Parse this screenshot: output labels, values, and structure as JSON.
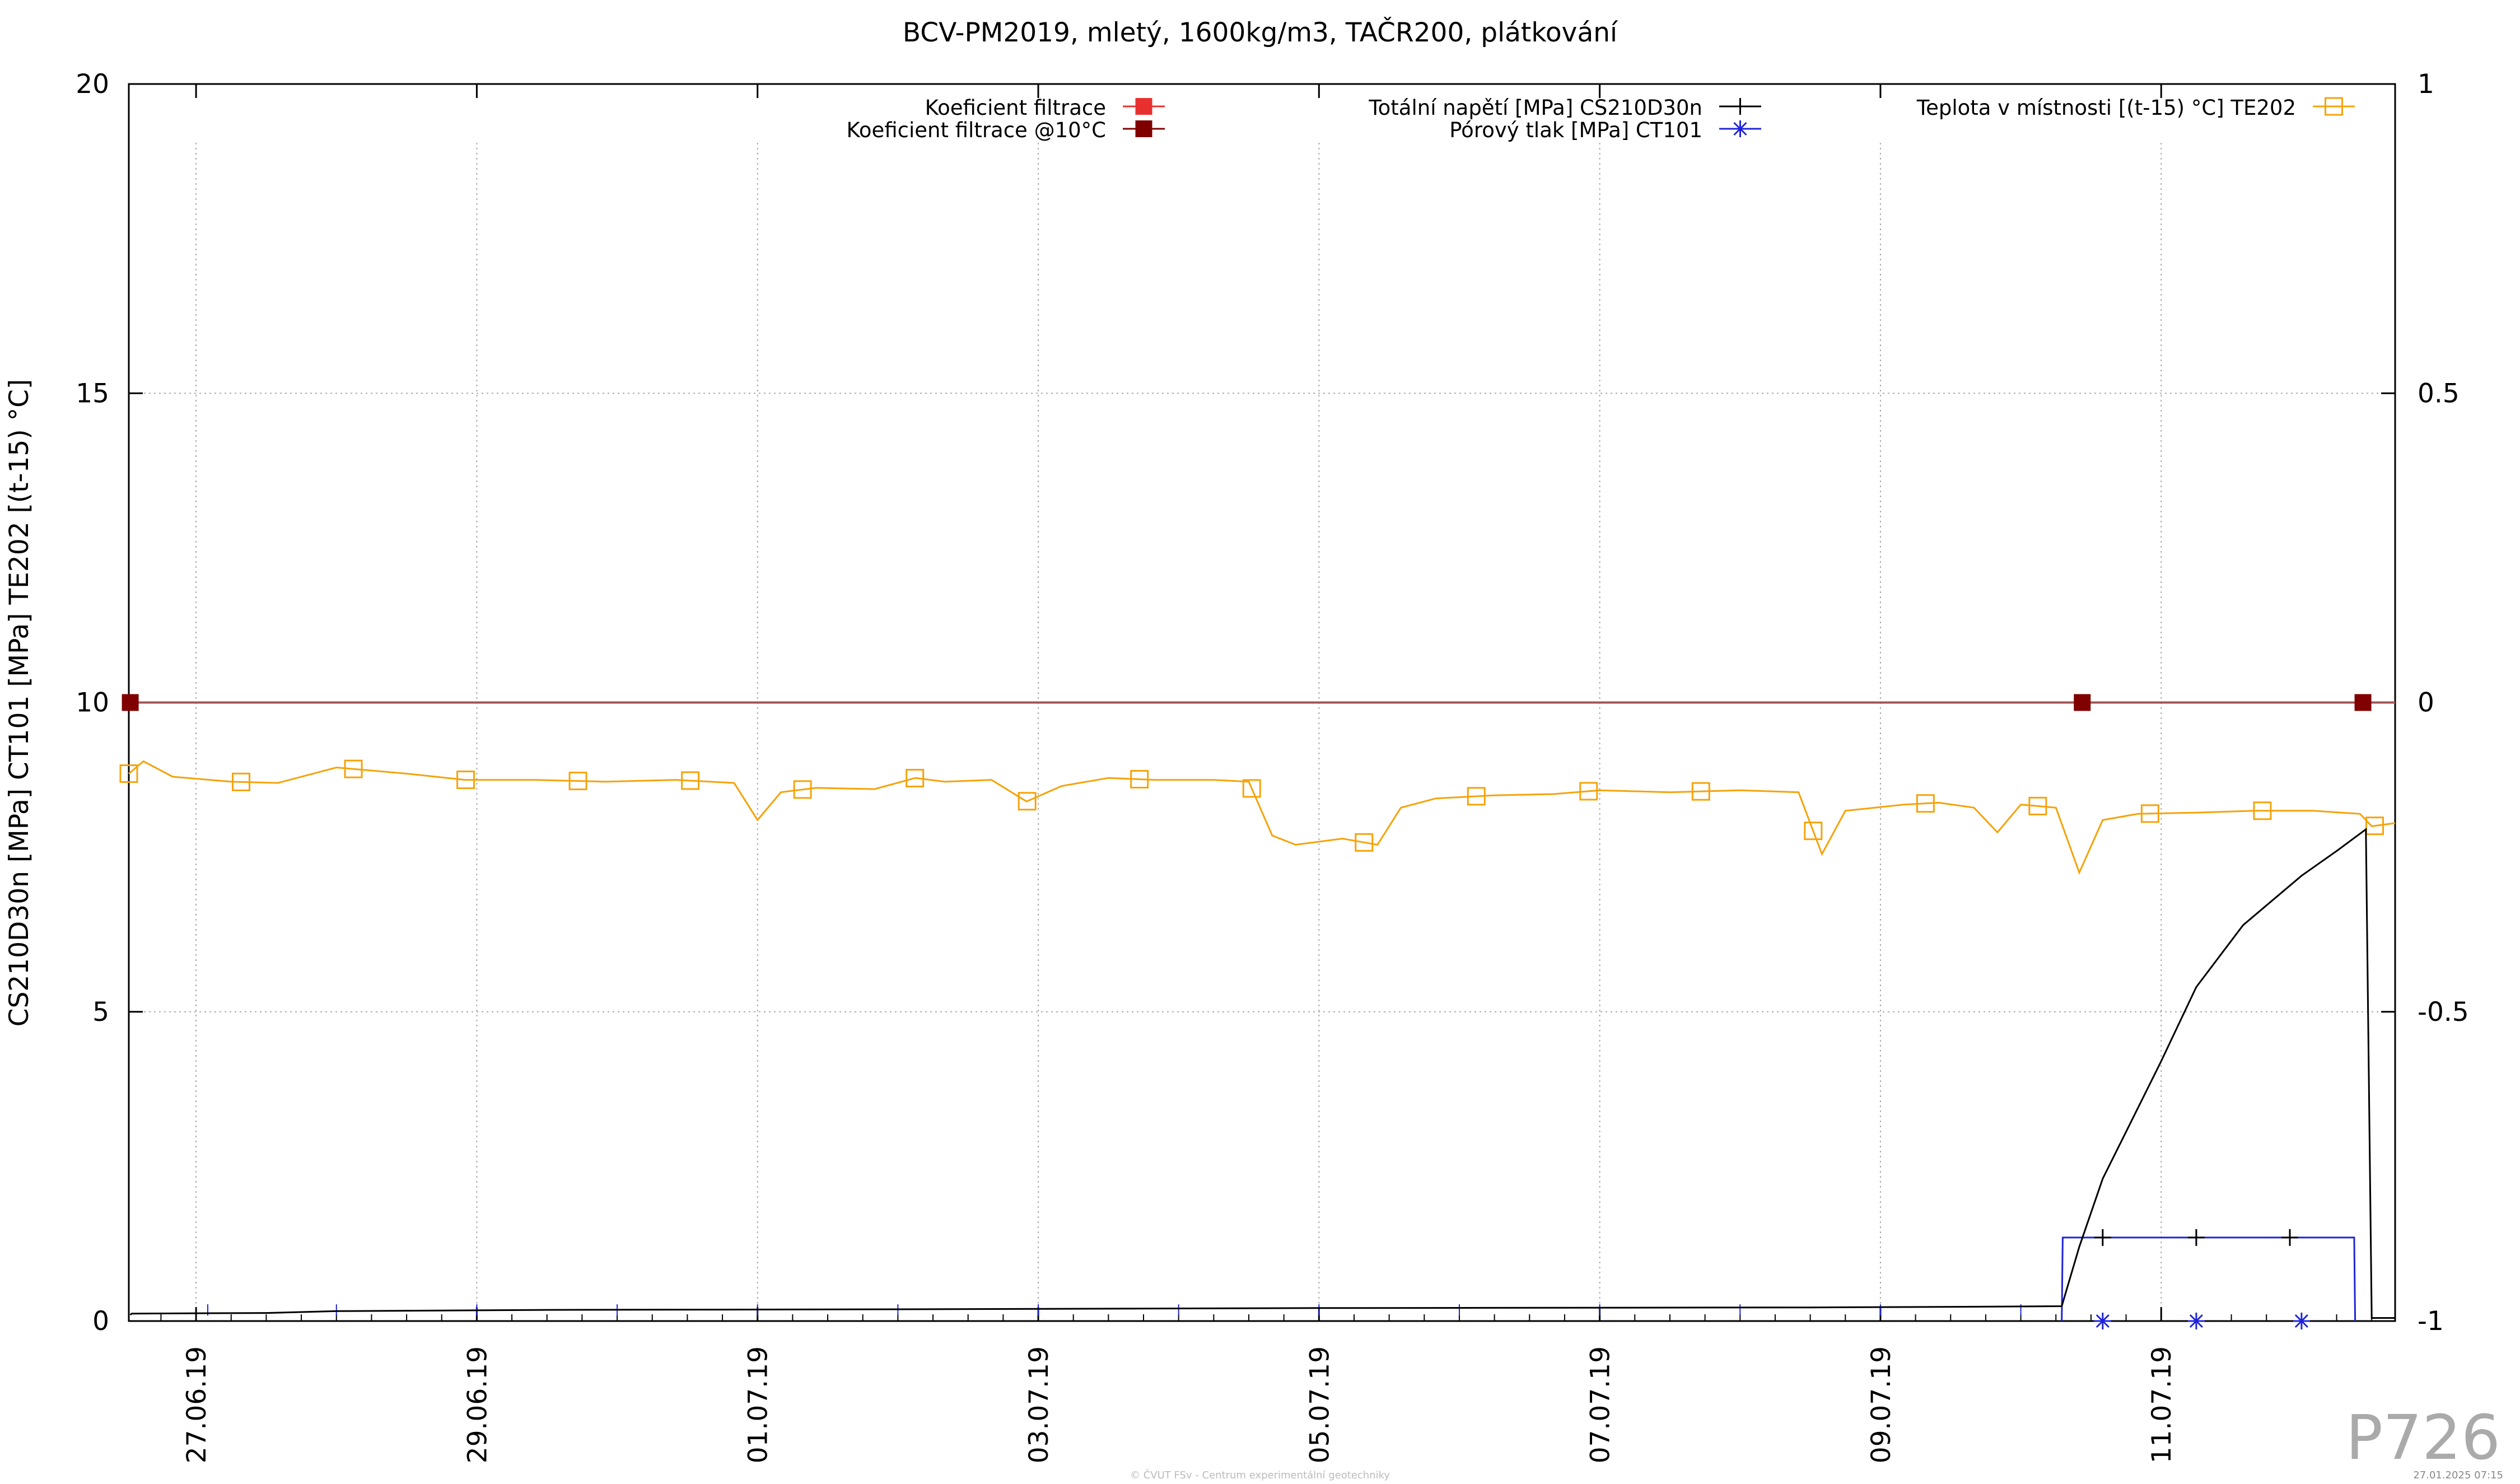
{
  "chart_data": {
    "type": "line",
    "title": "BCV-PM2019, mletý, 1600kg/m3, TAČR200, plátkování",
    "ylabel": "CS210D30n [MPa] CT101 [MPa] TE202 [(t-15) °C]",
    "y2label": "",
    "xaxis": {
      "type": "date",
      "range": [
        "2019-06-26 12:30",
        "2019-07-12 16:00"
      ]
    },
    "ylim": [
      0,
      20
    ],
    "y2lim": [
      -1,
      1
    ],
    "yticks": [
      "0",
      "5",
      "10",
      "15",
      "20"
    ],
    "y2ticks": [
      "-1",
      "-0.5",
      "0",
      "0.5",
      "1"
    ],
    "xtick_labels": [
      "27.06.19",
      "29.06.19",
      "01.07.19",
      "03.07.19",
      "05.07.19",
      "07.07.19",
      "09.07.19",
      "11.07.19"
    ],
    "xtick_dates": [
      "2019-06-27",
      "2019-06-29",
      "2019-07-01",
      "2019-07-03",
      "2019-07-05",
      "2019-07-07",
      "2019-07-09",
      "2019-07-11"
    ],
    "grid": true,
    "legend": "top",
    "series": [
      {
        "name": "Koeficient filtrace",
        "axis": "y2",
        "color": "#e8312f",
        "marker": "filled-square",
        "points": []
      },
      {
        "name": "Koeficient filtrace @10°C",
        "axis": "y2",
        "color": "#800000",
        "marker": "filled-square",
        "points": [
          [
            "2019-06-26 12:45",
            0.0
          ],
          [
            "2019-07-10 10:30",
            0.0
          ],
          [
            "2019-07-12 10:30",
            0.0
          ]
        ]
      },
      {
        "name": "Totální napětí [MPa] CS210D30n",
        "axis": "y",
        "color": "#000000",
        "marker": "plus",
        "points": [
          [
            "2019-06-26 12:45",
            0.1
          ],
          [
            "2019-06-26 13:00",
            0.12
          ],
          [
            "2019-06-27 12:00",
            0.13
          ],
          [
            "2019-06-28 00:00",
            0.16
          ],
          [
            "2019-06-29 12:00",
            0.18
          ],
          [
            "2019-07-02 00:00",
            0.19
          ],
          [
            "2019-07-05 00:00",
            0.21
          ],
          [
            "2019-07-08 12:00",
            0.22
          ],
          [
            "2019-07-09 12:00",
            0.23
          ],
          [
            "2019-07-10 07:00",
            0.24
          ],
          [
            "2019-07-10 07:30",
            0.4
          ],
          [
            "2019-07-10 10:00",
            1.2
          ],
          [
            "2019-07-10 14:00",
            2.3
          ],
          [
            "2019-07-11 00:00",
            4.2
          ],
          [
            "2019-07-11 06:00",
            5.4
          ],
          [
            "2019-07-11 14:00",
            6.4
          ],
          [
            "2019-07-12 00:00",
            7.2
          ],
          [
            "2019-07-12 06:00",
            7.6
          ],
          [
            "2019-07-12 11:00",
            7.95
          ],
          [
            "2019-07-12 11:30",
            4.0
          ],
          [
            "2019-07-12 12:00",
            0.05
          ],
          [
            "2019-07-12 16:00",
            0.05
          ]
        ]
      },
      {
        "name": "Pórový tlak [MPa] CT101",
        "axis": "y",
        "color": "#1f24d9",
        "marker": "star",
        "points": [
          [
            "2019-07-10 07:00",
            0.0
          ],
          [
            "2019-07-10 07:10",
            1.35
          ],
          [
            "2019-07-11 00:00",
            1.35
          ],
          [
            "2019-07-11 16:00",
            1.35
          ],
          [
            "2019-07-12 09:00",
            1.35
          ],
          [
            "2019-07-12 09:10",
            0.0
          ]
        ]
      },
      {
        "name": "Teplota v místnosti [(t-15) °C] TE202",
        "axis": "y",
        "color": "#f5a30a",
        "marker": "open-square",
        "points": [
          [
            "2019-06-26 12:30",
            8.85
          ],
          [
            "2019-06-26 15:00",
            9.05
          ],
          [
            "2019-06-26 20:00",
            8.8
          ],
          [
            "2019-06-27 06:00",
            8.72
          ],
          [
            "2019-06-27 14:00",
            8.7
          ],
          [
            "2019-06-28 00:00",
            8.95
          ],
          [
            "2019-06-28 12:00",
            8.85
          ],
          [
            "2019-06-28 22:00",
            8.75
          ],
          [
            "2019-06-29 10:00",
            8.75
          ],
          [
            "2019-06-29 22:00",
            8.72
          ],
          [
            "2019-06-30 10:00",
            8.75
          ],
          [
            "2019-06-30 20:00",
            8.7
          ],
          [
            "2019-06-30 22:00",
            8.4
          ],
          [
            "2019-07-01 00:00",
            8.1
          ],
          [
            "2019-07-01 04:00",
            8.55
          ],
          [
            "2019-07-01 10:00",
            8.62
          ],
          [
            "2019-07-01 20:00",
            8.6
          ],
          [
            "2019-07-02 03:00",
            8.78
          ],
          [
            "2019-07-02 08:00",
            8.72
          ],
          [
            "2019-07-02 16:00",
            8.75
          ],
          [
            "2019-07-02 22:00",
            8.4
          ],
          [
            "2019-07-03 04:00",
            8.65
          ],
          [
            "2019-07-03 12:00",
            8.78
          ],
          [
            "2019-07-03 20:00",
            8.75
          ],
          [
            "2019-07-04 06:00",
            8.75
          ],
          [
            "2019-07-04 12:00",
            8.72
          ],
          [
            "2019-07-04 16:00",
            7.85
          ],
          [
            "2019-07-04 20:00",
            7.7
          ],
          [
            "2019-07-05 04:00",
            7.8
          ],
          [
            "2019-07-05 10:00",
            7.7
          ],
          [
            "2019-07-05 14:00",
            8.3
          ],
          [
            "2019-07-05 20:00",
            8.45
          ],
          [
            "2019-07-06 06:00",
            8.5
          ],
          [
            "2019-07-06 16:00",
            8.52
          ],
          [
            "2019-07-07 00:00",
            8.58
          ],
          [
            "2019-07-07 12:00",
            8.55
          ],
          [
            "2019-07-08 00:00",
            8.58
          ],
          [
            "2019-07-08 10:00",
            8.55
          ],
          [
            "2019-07-08 14:00",
            7.55
          ],
          [
            "2019-07-08 18:00",
            8.25
          ],
          [
            "2019-07-09 04:00",
            8.35
          ],
          [
            "2019-07-09 10:00",
            8.38
          ],
          [
            "2019-07-09 16:00",
            8.3
          ],
          [
            "2019-07-09 20:00",
            7.9
          ],
          [
            "2019-07-10 00:00",
            8.35
          ],
          [
            "2019-07-10 06:00",
            8.3
          ],
          [
            "2019-07-10 10:00",
            7.25
          ],
          [
            "2019-07-10 14:00",
            8.1
          ],
          [
            "2019-07-10 20:00",
            8.2
          ],
          [
            "2019-07-11 06:00",
            8.22
          ],
          [
            "2019-07-11 16:00",
            8.25
          ],
          [
            "2019-07-12 02:00",
            8.25
          ],
          [
            "2019-07-12 10:00",
            8.2
          ],
          [
            "2019-07-12 12:00",
            8.0
          ],
          [
            "2019-07-12 16:00",
            8.05
          ]
        ]
      }
    ]
  },
  "watermark": "P726",
  "footer_center": "© ČVUT FSv - Centrum experimentální geotechniky",
  "footer_right": "27.01.2025 07:15"
}
